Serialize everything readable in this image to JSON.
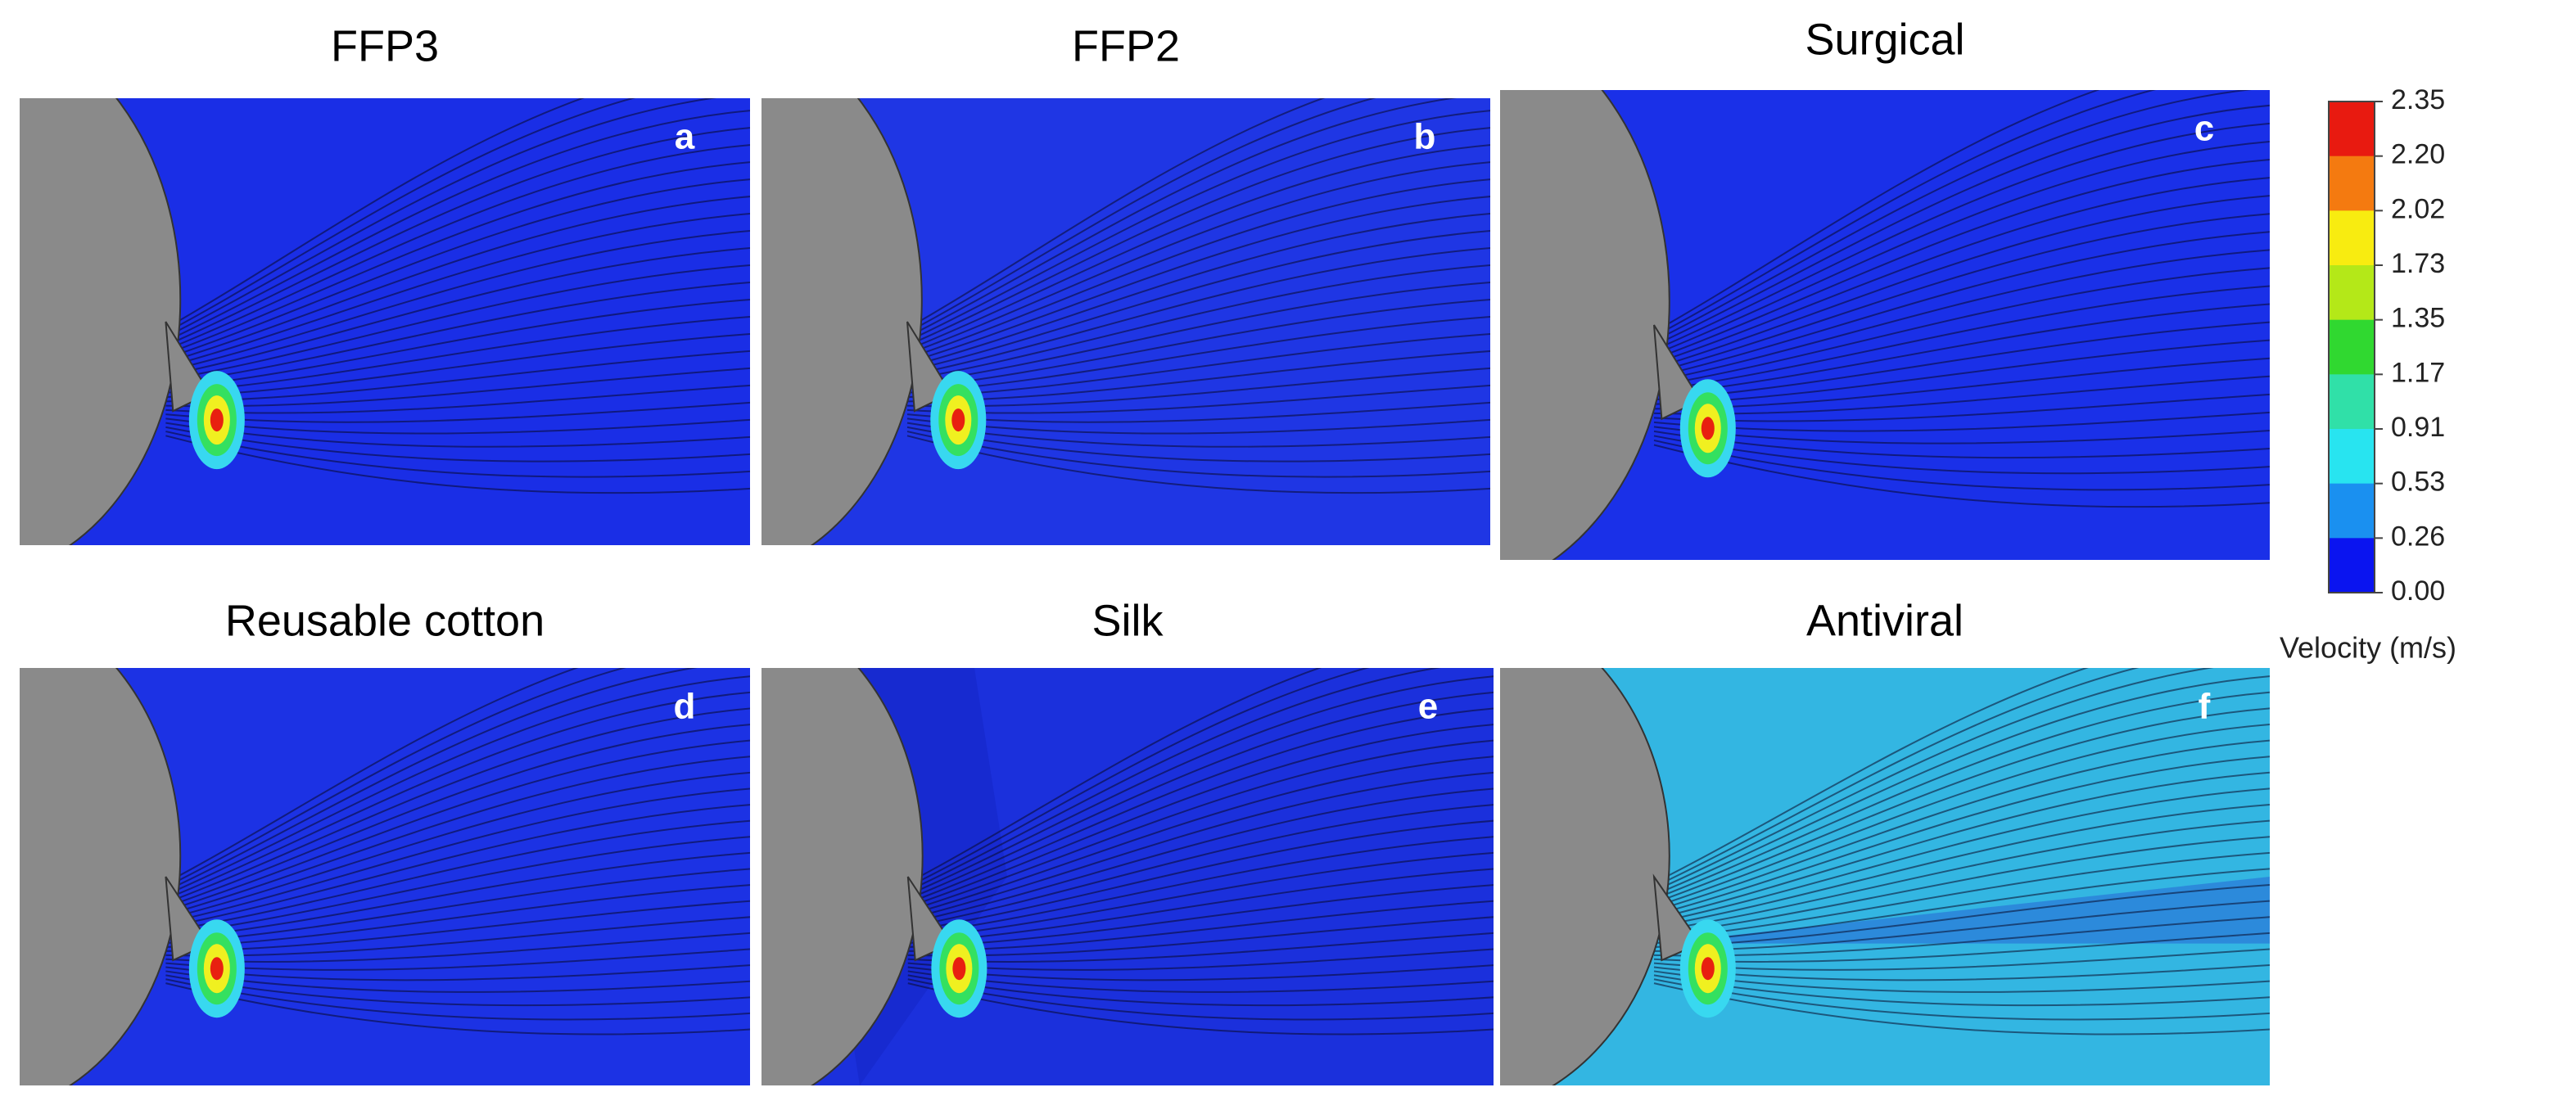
{
  "panels": [
    {
      "title": "FFP3",
      "letter": "a"
    },
    {
      "title": "FFP2",
      "letter": "b"
    },
    {
      "title": "Surgical",
      "letter": "c"
    },
    {
      "title": "Reusable cotton",
      "letter": "d"
    },
    {
      "title": "Silk",
      "letter": "e"
    },
    {
      "title": "Antiviral",
      "letter": "f"
    }
  ],
  "colorbar": {
    "ticks": [
      "2.35",
      "2.20",
      "2.02",
      "1.73",
      "1.35",
      "1.17",
      "0.91",
      "0.53",
      "0.26",
      "0.00"
    ],
    "label": "Velocity (m/s)"
  }
}
